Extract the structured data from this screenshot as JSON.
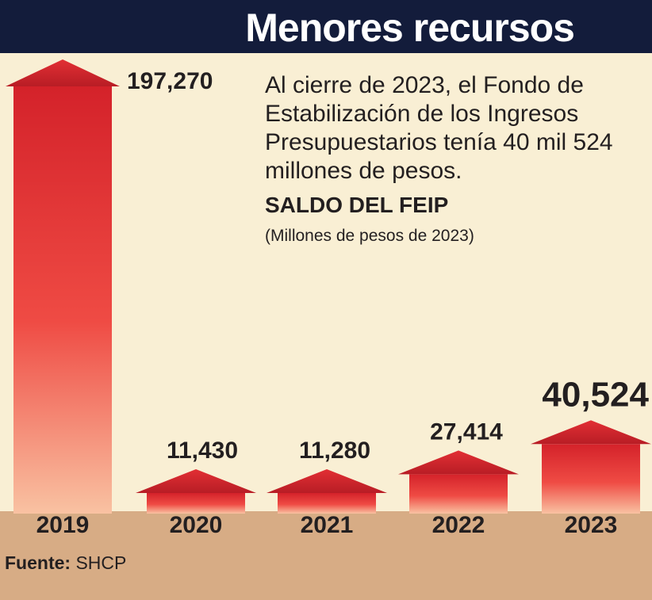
{
  "header": {
    "title": "Menores recursos"
  },
  "description": "Al cierre de 2023, el Fondo de Estabilización de los Ingresos Presupuestarios tenía 40 mil 524 millones de pesos.",
  "source": {
    "label": "Fuente:",
    "value": "SHCP"
  },
  "colors": {
    "title_bar": "#131c3b",
    "background": "#f9efd4",
    "axis_band": "#d7ac85",
    "bar_top": "#d4222a",
    "bar_bottom": "#f9c2a2"
  },
  "chart_data": {
    "type": "bar",
    "title": "SALDO DEL FEIP",
    "subtitle": "(Millones de pesos de 2023)",
    "categories": [
      "2019",
      "2020",
      "2021",
      "2022",
      "2023"
    ],
    "values": [
      197270,
      11430,
      11280,
      27414,
      40524
    ],
    "value_labels": [
      "197,270",
      "11,430",
      "11,280",
      "27,414",
      "40,524"
    ],
    "xlabel": "",
    "ylabel": "",
    "ylim": [
      0,
      197270
    ],
    "grid": false,
    "legend": "none"
  }
}
